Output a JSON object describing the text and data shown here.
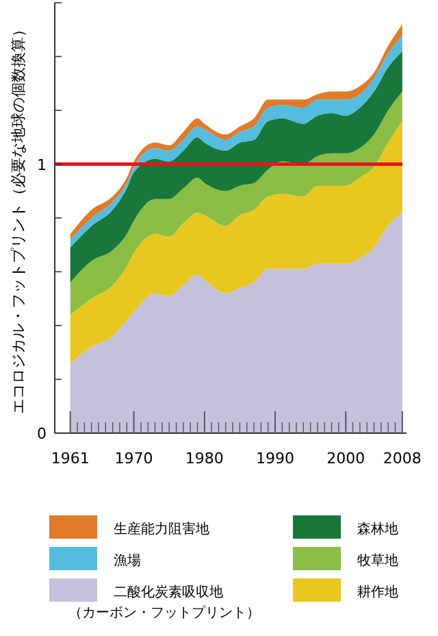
{
  "chart_data": {
    "type": "area",
    "stacked": true,
    "ylabel": "エコロジカル・フットプリント（必要な地球の個数換算）",
    "x": [
      1961,
      1964,
      1967,
      1969,
      1970,
      1973,
      1975,
      1977,
      1979,
      1980,
      1983,
      1985,
      1987,
      1989,
      1991,
      1994,
      1996,
      1998,
      2000,
      2002,
      2004,
      2006,
      2008
    ],
    "series": [
      {
        "name": "二酸化炭素吸収地（カーボン・フットプリント）",
        "color": "#c5c2de",
        "values": [
          0.26,
          0.32,
          0.36,
          0.42,
          0.45,
          0.52,
          0.51,
          0.55,
          0.59,
          0.57,
          0.52,
          0.54,
          0.56,
          0.61,
          0.61,
          0.61,
          0.63,
          0.63,
          0.63,
          0.65,
          0.69,
          0.77,
          0.82
        ]
      },
      {
        "name": "耕作地",
        "color": "#e8c820",
        "values": [
          0.18,
          0.18,
          0.19,
          0.2,
          0.22,
          0.22,
          0.22,
          0.23,
          0.23,
          0.24,
          0.25,
          0.27,
          0.27,
          0.27,
          0.28,
          0.27,
          0.29,
          0.29,
          0.29,
          0.3,
          0.3,
          0.31,
          0.34
        ]
      },
      {
        "name": "牧草地",
        "color": "#8bbd45",
        "values": [
          0.12,
          0.14,
          0.13,
          0.12,
          0.12,
          0.13,
          0.14,
          0.13,
          0.13,
          0.12,
          0.13,
          0.11,
          0.1,
          0.1,
          0.12,
          0.12,
          0.11,
          0.12,
          0.12,
          0.11,
          0.12,
          0.12,
          0.11
        ]
      },
      {
        "name": "森林地",
        "color": "#18773a",
        "values": [
          0.13,
          0.13,
          0.15,
          0.17,
          0.18,
          0.15,
          0.14,
          0.14,
          0.15,
          0.15,
          0.15,
          0.16,
          0.16,
          0.18,
          0.16,
          0.15,
          0.15,
          0.15,
          0.14,
          0.15,
          0.16,
          0.16,
          0.15
        ]
      },
      {
        "name": "漁場",
        "color": "#55bde0",
        "values": [
          0.03,
          0.03,
          0.03,
          0.02,
          0.02,
          0.04,
          0.04,
          0.04,
          0.04,
          0.05,
          0.04,
          0.04,
          0.05,
          0.05,
          0.05,
          0.06,
          0.06,
          0.05,
          0.06,
          0.05,
          0.05,
          0.05,
          0.06
        ]
      },
      {
        "name": "生産能力阻害地",
        "color": "#e07b2a",
        "values": [
          0.02,
          0.03,
          0.02,
          0.02,
          0.02,
          0.02,
          0.02,
          0.03,
          0.03,
          0.02,
          0.02,
          0.02,
          0.03,
          0.03,
          0.02,
          0.03,
          0.02,
          0.03,
          0.03,
          0.03,
          0.02,
          0.03,
          0.04
        ]
      }
    ],
    "xlim": [
      1958.8,
      2008.6
    ],
    "xticks": [
      1961,
      {
        "value": 1962,
        "label": null
      },
      {
        "value": 1963,
        "label": null
      },
      {
        "value": 1964,
        "label": null
      },
      {
        "value": 1965,
        "label": null
      },
      {
        "value": 1966,
        "label": null
      },
      {
        "value": 1967,
        "label": null
      },
      {
        "value": 1968,
        "label": null
      },
      {
        "value": 1969,
        "label": null
      },
      1970,
      {
        "value": 1971,
        "label": null
      },
      {
        "value": 1972,
        "label": null
      },
      {
        "value": 1973,
        "label": null
      },
      {
        "value": 1974,
        "label": null
      },
      {
        "value": 1975,
        "label": null
      },
      {
        "value": 1976,
        "label": null
      },
      {
        "value": 1977,
        "label": null
      },
      {
        "value": 1978,
        "label": null
      },
      {
        "value": 1979,
        "label": null
      },
      1980,
      {
        "value": 1981,
        "label": null
      },
      {
        "value": 1982,
        "label": null
      },
      {
        "value": 1983,
        "label": null
      },
      {
        "value": 1984,
        "label": null
      },
      {
        "value": 1985,
        "label": null
      },
      {
        "value": 1986,
        "label": null
      },
      {
        "value": 1987,
        "label": null
      },
      {
        "value": 1988,
        "label": null
      },
      {
        "value": 1989,
        "label": null
      },
      1990,
      {
        "value": 1991,
        "label": null
      },
      {
        "value": 1992,
        "label": null
      },
      {
        "value": 1993,
        "label": null
      },
      {
        "value": 1994,
        "label": null
      },
      {
        "value": 1995,
        "label": null
      },
      {
        "value": 1996,
        "label": null
      },
      {
        "value": 1997,
        "label": null
      },
      {
        "value": 1998,
        "label": null
      },
      {
        "value": 1999,
        "label": null
      },
      2000,
      {
        "value": 2001,
        "label": null
      },
      {
        "value": 2002,
        "label": null
      },
      {
        "value": 2003,
        "label": null
      },
      {
        "value": 2004,
        "label": null
      },
      {
        "value": 2005,
        "label": null
      },
      {
        "value": 2006,
        "label": null
      },
      {
        "value": 2007,
        "label": null
      },
      2008
    ],
    "ylim": [
      0,
      1.6
    ],
    "yticks": [
      0,
      {
        "value": 0.2,
        "label": null
      },
      {
        "value": 0.4,
        "label": null
      },
      {
        "value": 0.6,
        "label": null
      },
      {
        "value": 0.8,
        "label": null
      },
      1,
      {
        "value": 1.2,
        "label": null
      },
      {
        "value": 1.4,
        "label": null
      },
      {
        "value": 1.6,
        "label": null
      }
    ],
    "ref_lines": [
      {
        "axis": "y",
        "value": 1,
        "color": "#e8141c"
      }
    ],
    "legend": "bottom"
  }
}
